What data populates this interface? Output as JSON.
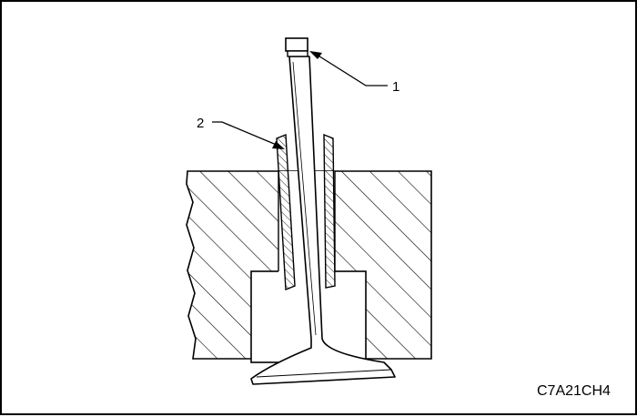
{
  "diagram": {
    "callouts": [
      {
        "id": "1",
        "label": "1"
      },
      {
        "id": "2",
        "label": "2"
      }
    ],
    "figure_code": "C7A21CH4"
  },
  "colors": {
    "line": "#000000",
    "background": "#ffffff"
  }
}
